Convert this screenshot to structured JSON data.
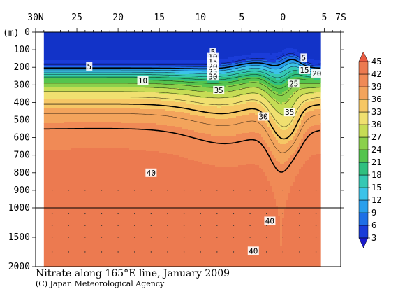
{
  "chart_data": {
    "type": "heatmap",
    "title": "Nitrate along 165°E line, January 2009",
    "credit": "(C) Japan Meteorological Agency",
    "x_axis": {
      "tick_labels": [
        "30N",
        "25",
        "20",
        "15",
        "10",
        "5",
        "0",
        "5",
        "7S"
      ],
      "tick_positions_deg": [
        30,
        25,
        20,
        15,
        10,
        5,
        0,
        -5,
        -7
      ],
      "range": [
        30,
        -7
      ],
      "note": "latitude; positive = north, negative = south"
    },
    "y_axis": {
      "unit_label": "(m)",
      "upper_tick_labels": [
        "0",
        "100",
        "200",
        "300",
        "400",
        "500",
        "600",
        "700",
        "800",
        "900",
        "1000"
      ],
      "lower_tick_labels": [
        "1500",
        "2000"
      ],
      "upper_range": [
        0,
        1000
      ],
      "lower_range": [
        1000,
        2000
      ],
      "split_depth": 1000
    },
    "data_extent": {
      "lat_north": 29,
      "lat_south": -4.6
    },
    "colorbar": {
      "levels": [
        3,
        6,
        9,
        12,
        15,
        18,
        21,
        24,
        27,
        30,
        33,
        36,
        39,
        42,
        45
      ],
      "colors": [
        "#1a3cd9",
        "#1f6fe6",
        "#2a9fec",
        "#3cc3e9",
        "#35c8b4",
        "#2fbf7f",
        "#54c44e",
        "#8bd04b",
        "#c6dc55",
        "#f0e070",
        "#f6c765",
        "#f3a45c",
        "#f08a56",
        "#ec7a50"
      ],
      "arrows": [
        "top",
        "bottom"
      ]
    },
    "contour_labels": [
      {
        "text": "5",
        "lat": 23.5,
        "depth": 195
      },
      {
        "text": "10",
        "lat": 17,
        "depth": 275
      },
      {
        "text": "5",
        "lat": 8.5,
        "depth": 112
      },
      {
        "text": "10",
        "lat": 8.5,
        "depth": 142
      },
      {
        "text": "15",
        "lat": 8.5,
        "depth": 168
      },
      {
        "text": "20",
        "lat": 8.5,
        "depth": 196
      },
      {
        "text": "25",
        "lat": 8.5,
        "depth": 225
      },
      {
        "text": "30",
        "lat": 8.5,
        "depth": 252
      },
      {
        "text": "35",
        "lat": 7.8,
        "depth": 330
      },
      {
        "text": "5",
        "lat": -2.5,
        "depth": 145
      },
      {
        "text": "15",
        "lat": -2.6,
        "depth": 215
      },
      {
        "text": "20",
        "lat": -4.1,
        "depth": 235
      },
      {
        "text": "25",
        "lat": -1.3,
        "depth": 292
      },
      {
        "text": "35",
        "lat": -0.8,
        "depth": 455
      },
      {
        "text": "30",
        "lat": 2.4,
        "depth": 480
      },
      {
        "text": "40",
        "lat": 16,
        "depth": 800
      },
      {
        "text": "40",
        "lat": 1.6,
        "depth": 1220
      },
      {
        "text": "40",
        "lat": 3.6,
        "depth": 1730
      }
    ]
  }
}
